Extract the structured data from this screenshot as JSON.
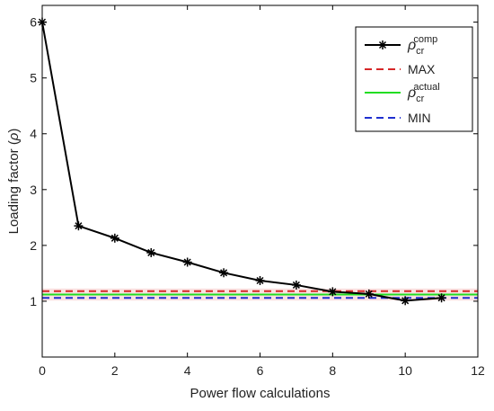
{
  "chart_data": {
    "type": "line",
    "xlabel": "Power flow calculations",
    "ylabel_main": "Loading factor (",
    "ylabel_symbol": "ρ",
    "ylabel_close": ")",
    "xlim": [
      0,
      12
    ],
    "ylim": [
      0,
      6.3
    ],
    "xticks": [
      0,
      2,
      4,
      6,
      8,
      10,
      12
    ],
    "yticks": [
      1,
      2,
      3,
      4,
      5,
      6
    ],
    "grid": false,
    "legend_position": "top-right",
    "series": [
      {
        "name_symbol": "ρ",
        "name_sub": "cr",
        "name_sup": "comp",
        "style": "solid-with-star-markers",
        "color": "#000000",
        "x": [
          0,
          1,
          2,
          3,
          4,
          5,
          6,
          7,
          8,
          9,
          10,
          11
        ],
        "y": [
          6.0,
          2.35,
          2.13,
          1.87,
          1.7,
          1.51,
          1.37,
          1.29,
          1.17,
          1.13,
          1.01,
          1.06
        ]
      },
      {
        "name": "MAX",
        "style": "dashed",
        "color": "#d62728",
        "value": 1.18
      },
      {
        "name_symbol": "ρ",
        "name_sub": "cr",
        "name_sup": "actual",
        "style": "solid",
        "color": "#22dd22",
        "value": 1.12
      },
      {
        "name": "MIN",
        "style": "dashed",
        "color": "#1f2fcf",
        "value": 1.06
      }
    ],
    "band": {
      "from": 1.06,
      "to": 1.18,
      "color": "#f5c8c8"
    }
  }
}
